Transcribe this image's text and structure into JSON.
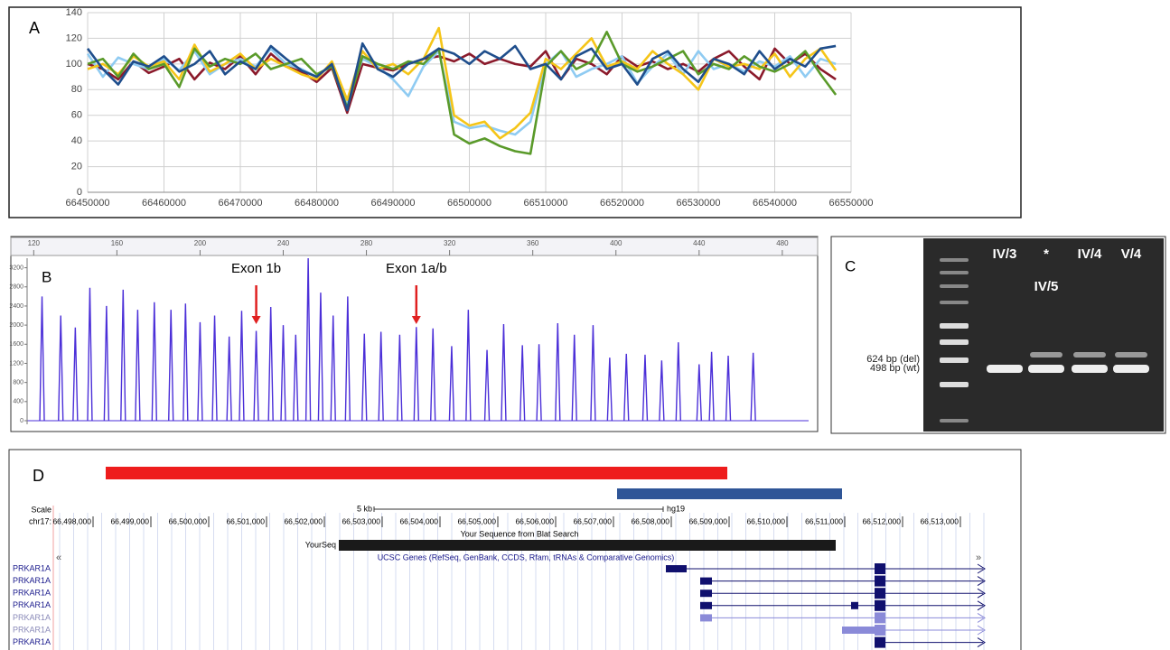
{
  "chart_data": [
    {
      "type": "line",
      "panel_label": "A",
      "x": [
        66450000,
        66452000,
        66454000,
        66456000,
        66458000,
        66460000,
        66462000,
        66464000,
        66466000,
        66468000,
        66470000,
        66472000,
        66474000,
        66476000,
        66478000,
        66480000,
        66482000,
        66484000,
        66486000,
        66488000,
        66490000,
        66492000,
        66494000,
        66496000,
        66498000,
        66500000,
        66502000,
        66504000,
        66506000,
        66508000,
        66510000,
        66512000,
        66514000,
        66516000,
        66518000,
        66520000,
        66522000,
        66524000,
        66526000,
        66528000,
        66530000,
        66532000,
        66534000,
        66536000,
        66538000,
        66540000,
        66542000,
        66544000,
        66546000,
        66548000
      ],
      "xlim": [
        66450000,
        66550000
      ],
      "xticks": [
        66450000,
        66460000,
        66470000,
        66480000,
        66490000,
        66500000,
        66510000,
        66520000,
        66530000,
        66540000,
        66550000
      ],
      "ylim": [
        0,
        140
      ],
      "yticks": [
        0,
        20,
        40,
        60,
        80,
        100,
        120,
        140
      ],
      "grid": true,
      "series": [
        {
          "color": "#8b1a2b",
          "values": [
            100,
            96,
            88,
            102,
            93,
            98,
            104,
            88,
            101,
            96,
            106,
            92,
            108,
            98,
            94,
            86,
            97,
            62,
            100,
            97,
            95,
            100,
            104,
            106,
            102,
            108,
            100,
            104,
            100,
            98,
            110,
            88,
            104,
            100,
            92,
            106,
            98,
            102,
            96,
            100,
            94,
            104,
            110,
            98,
            88,
            112,
            100,
            108,
            96,
            88
          ]
        },
        {
          "color": "#8fcbf2",
          "values": [
            108,
            90,
            105,
            100,
            96,
            104,
            95,
            110,
            92,
            100,
            104,
            98,
            112,
            100,
            96,
            90,
            100,
            70,
            104,
            98,
            88,
            75,
            98,
            110,
            55,
            50,
            52,
            48,
            45,
            55,
            100,
            110,
            90,
            96,
            100,
            106,
            85,
            98,
            108,
            92,
            110,
            96,
            100,
            94,
            102,
            98,
            106,
            90,
            104,
            100
          ]
        },
        {
          "color": "#f5c518",
          "values": [
            96,
            100,
            92,
            106,
            98,
            102,
            88,
            115,
            94,
            100,
            108,
            96,
            104,
            98,
            92,
            88,
            102,
            72,
            110,
            96,
            100,
            92,
            104,
            128,
            60,
            52,
            55,
            42,
            50,
            62,
            104,
            96,
            108,
            120,
            98,
            102,
            96,
            110,
            100,
            92,
            80,
            104,
            98,
            100,
            96,
            108,
            90,
            104,
            112,
            95
          ]
        },
        {
          "color": "#5a9a2a",
          "values": [
            100,
            104,
            90,
            108,
            96,
            100,
            82,
            112,
            98,
            104,
            100,
            108,
            96,
            100,
            104,
            92,
            98,
            66,
            106,
            100,
            96,
            102,
            100,
            112,
            45,
            38,
            42,
            36,
            32,
            30,
            98,
            110,
            96,
            102,
            125,
            100,
            94,
            98,
            104,
            110,
            92,
            100,
            96,
            106,
            98,
            94,
            100,
            110,
            92,
            76
          ]
        },
        {
          "color": "#1f4e8c",
          "values": [
            112,
            96,
            84,
            102,
            98,
            106,
            94,
            100,
            110,
            92,
            102,
            96,
            114,
            104,
            95,
            90,
            100,
            64,
            116,
            96,
            90,
            100,
            104,
            112,
            108,
            100,
            110,
            104,
            114,
            96,
            100,
            88,
            106,
            112,
            96,
            100,
            84,
            104,
            110,
            96,
            86,
            104,
            100,
            92,
            110,
            96,
            104,
            98,
            112,
            114
          ]
        }
      ]
    },
    {
      "type": "peaks",
      "panel_label": "B",
      "x": [
        124,
        133,
        140,
        147,
        155,
        163,
        170,
        178,
        186,
        193,
        200,
        207,
        214,
        220,
        227,
        234,
        240,
        246,
        252,
        258,
        264,
        271,
        279,
        287,
        296,
        304,
        312,
        321,
        329,
        338,
        346,
        355,
        363,
        372,
        380,
        389,
        397,
        405,
        414,
        422,
        430,
        440,
        446,
        454,
        466
      ],
      "values": [
        2600,
        2200,
        1950,
        2780,
        2400,
        2740,
        2320,
        2480,
        2320,
        2450,
        2060,
        2200,
        1760,
        2300,
        1880,
        2380,
        2000,
        1800,
        3400,
        2680,
        2200,
        2600,
        1820,
        1860,
        1800,
        1960,
        1930,
        1560,
        2320,
        1480,
        2020,
        1580,
        1600,
        2040,
        1800,
        2000,
        1320,
        1400,
        1380,
        1260,
        1640,
        1180,
        1440,
        1360,
        1420
      ],
      "color": "#4b2fd8",
      "xlim": [
        109,
        497
      ],
      "xticks": [
        120,
        160,
        200,
        240,
        280,
        320,
        360,
        400,
        440,
        480
      ],
      "ylim": [
        0,
        3400
      ],
      "yticks": [
        0,
        400,
        800,
        1200,
        1600,
        2000,
        2400,
        2800,
        3200
      ],
      "annotations": [
        {
          "text": "Exon 1b",
          "x": 227
        },
        {
          "text": "Exon 1a/b",
          "x": 304
        }
      ]
    }
  ],
  "gel": {
    "panel_label": "C",
    "lane_labels": [
      "IV/3",
      "*",
      "IV/4",
      "V/4"
    ],
    "sublabel": "IV/5",
    "band_labels": [
      "624 bp (del)",
      "498 bp (wt)"
    ]
  },
  "browser": {
    "panel_label": "D",
    "scale_label": "Scale",
    "scale_text": "5 kb",
    "assembly": "hg19",
    "chrom": "chr17:",
    "ticks": [
      {
        "value": 66498000,
        "label": "66,498,000"
      },
      {
        "value": 66499000,
        "label": "66,499,000"
      },
      {
        "value": 66500000,
        "label": "66,500,000"
      },
      {
        "value": 66501000,
        "label": "66,501,000"
      },
      {
        "value": 66502000,
        "label": "66,502,000"
      },
      {
        "value": 66503000,
        "label": "66,503,000"
      },
      {
        "value": 66504000,
        "label": "66,504,000"
      },
      {
        "value": 66505000,
        "label": "66,505,000"
      },
      {
        "value": 66506000,
        "label": "66,506,000"
      },
      {
        "value": 66507000,
        "label": "66,507,000"
      },
      {
        "value": 66508000,
        "label": "66,508,000"
      },
      {
        "value": 66509000,
        "label": "66,509,000"
      },
      {
        "value": 66510000,
        "label": "66,510,000"
      },
      {
        "value": 66511000,
        "label": "66,511,000"
      },
      {
        "value": 66512000,
        "label": "66,512,000"
      },
      {
        "value": 66513000,
        "label": "66,513,000"
      }
    ],
    "blat_title": "Your Sequence from Blat Search",
    "blat_name": "YourSeq",
    "genes_title": "UCSC Genes (RefSeq, GenBank, CCDS, Rfam, tRNAs & Comparative Genomics)",
    "genes": [
      "PRKAR1A",
      "PRKAR1A",
      "PRKAR1A",
      "PRKAR1A",
      "PRKAR1A",
      "PRKAR1A",
      "PRKAR1A"
    ]
  }
}
